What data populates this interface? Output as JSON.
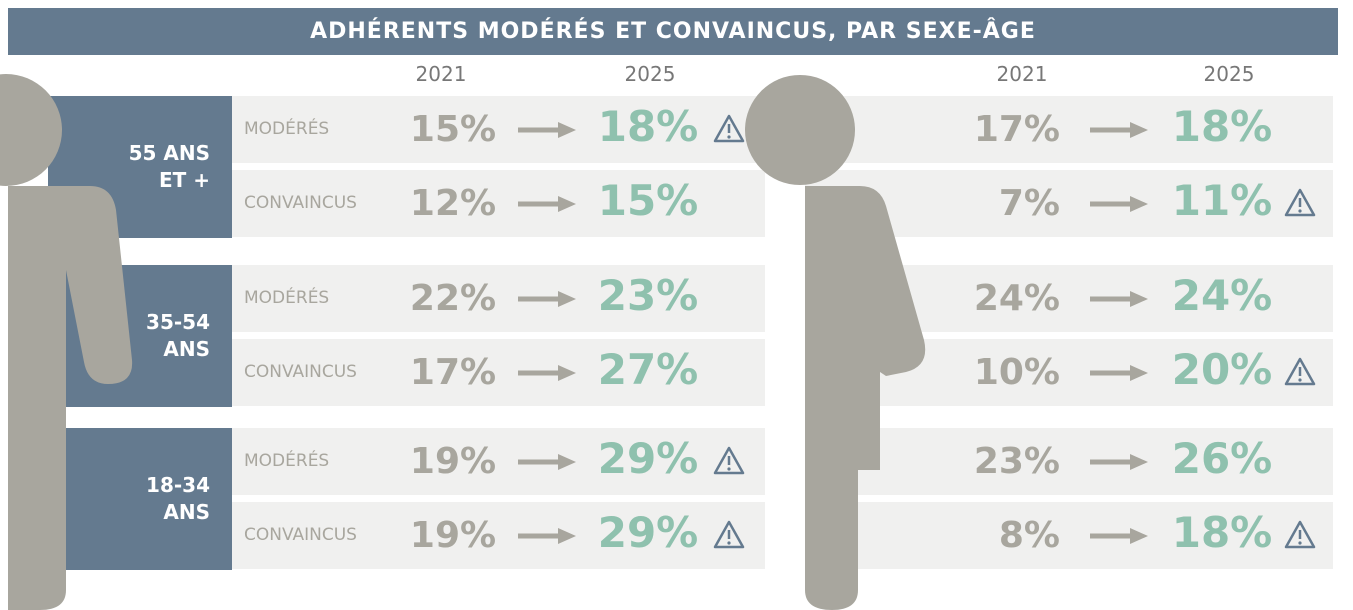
{
  "header": {
    "title": "ADHÉRENTS MODÉRÉS ET CONVAINCUS, PAR SEXE-ÂGE"
  },
  "panels": [
    {
      "years": [
        "2021",
        "2025"
      ],
      "groups": [
        {
          "label": "55 ANS ET +",
          "rows": [
            {
              "label": "MODÉRÉS",
              "from": "15%",
              "to": "18%",
              "warning": true
            },
            {
              "label": "CONVAINCUS",
              "from": "12%",
              "to": "15%",
              "warning": false
            }
          ]
        },
        {
          "label": "35-54 ANS",
          "rows": [
            {
              "label": "MODÉRÉS",
              "from": "22%",
              "to": "23%",
              "warning": false
            },
            {
              "label": "CONVAINCUS",
              "from": "17%",
              "to": "27%",
              "warning": false
            }
          ]
        },
        {
          "label": "18-34 ANS",
          "rows": [
            {
              "label": "MODÉRÉS",
              "from": "19%",
              "to": "29%",
              "warning": true
            },
            {
              "label": "CONVAINCUS",
              "from": "19%",
              "to": "29%",
              "warning": true
            }
          ]
        }
      ]
    },
    {
      "years": [
        "2021",
        "2025"
      ],
      "groups": [
        {
          "rows": [
            {
              "from": "17%",
              "to": "18%",
              "warning": false
            },
            {
              "from": "7%",
              "to": "11%",
              "warning": true
            }
          ]
        },
        {
          "rows": [
            {
              "from": "24%",
              "to": "24%",
              "warning": false
            },
            {
              "from": "10%",
              "to": "20%",
              "warning": true
            }
          ]
        },
        {
          "rows": [
            {
              "from": "23%",
              "to": "26%",
              "warning": false
            },
            {
              "from": "8%",
              "to": "18%",
              "warning": true
            }
          ]
        }
      ]
    }
  ]
}
